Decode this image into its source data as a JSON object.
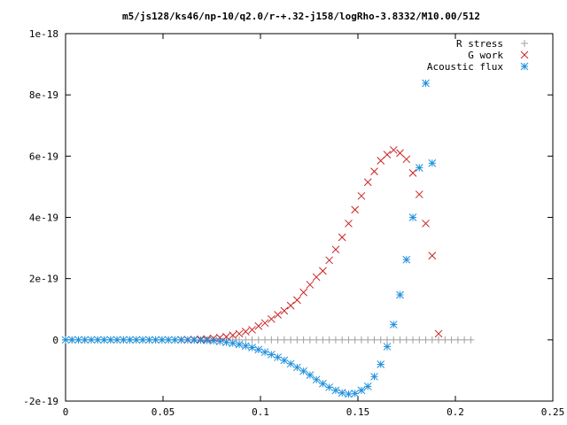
{
  "chart_data": {
    "type": "scatter",
    "title": "m5/js128/ks46/np-10/q2.0/r-+.32-j158/logRho-3.8332/M10.00/512",
    "xlabel": "",
    "ylabel": "",
    "xlim": [
      0,
      0.25
    ],
    "ylim": [
      -2e-19,
      1e-18
    ],
    "grid": false,
    "legend_position": "top-right",
    "x_ticks": [
      {
        "value": 0,
        "label": "0"
      },
      {
        "value": 0.05,
        "label": "0.05"
      },
      {
        "value": 0.1,
        "label": "0.1"
      },
      {
        "value": 0.15,
        "label": "0.15"
      },
      {
        "value": 0.2,
        "label": "0.2"
      },
      {
        "value": 0.25,
        "label": "0.25"
      }
    ],
    "y_ticks": [
      {
        "value": -2e-19,
        "label": "-2e-19"
      },
      {
        "value": 0,
        "label": "0"
      },
      {
        "value": 2e-19,
        "label": "2e-19"
      },
      {
        "value": 4e-19,
        "label": "4e-19"
      },
      {
        "value": 6e-19,
        "label": "6e-19"
      },
      {
        "value": 8e-19,
        "label": "8e-19"
      },
      {
        "value": 1e-18,
        "label": "1e-18"
      }
    ],
    "series": [
      {
        "name": "R stress",
        "marker": "plus",
        "color": "#a0a0a0",
        "points": [
          [
            0.0,
            0
          ],
          [
            0.0033,
            0
          ],
          [
            0.0066,
            0
          ],
          [
            0.0099,
            0
          ],
          [
            0.0132,
            0
          ],
          [
            0.0165,
            0
          ],
          [
            0.0198,
            0
          ],
          [
            0.0231,
            0
          ],
          [
            0.0264,
            0
          ],
          [
            0.0297,
            0
          ],
          [
            0.033,
            0
          ],
          [
            0.0363,
            0
          ],
          [
            0.0396,
            0
          ],
          [
            0.0429,
            0
          ],
          [
            0.0462,
            0
          ],
          [
            0.0495,
            0
          ],
          [
            0.0528,
            0
          ],
          [
            0.0561,
            0
          ],
          [
            0.0594,
            0
          ],
          [
            0.0627,
            0
          ],
          [
            0.066,
            0
          ],
          [
            0.0693,
            0
          ],
          [
            0.0726,
            0
          ],
          [
            0.0759,
            0
          ],
          [
            0.0792,
            0
          ],
          [
            0.0825,
            0
          ],
          [
            0.0858,
            0
          ],
          [
            0.0891,
            0
          ],
          [
            0.0924,
            0
          ],
          [
            0.0957,
            0
          ],
          [
            0.099,
            0
          ],
          [
            0.1023,
            0
          ],
          [
            0.1056,
            0
          ],
          [
            0.1089,
            0
          ],
          [
            0.1122,
            0
          ],
          [
            0.1155,
            0
          ],
          [
            0.1188,
            0
          ],
          [
            0.1221,
            0
          ],
          [
            0.1254,
            0
          ],
          [
            0.1287,
            0
          ],
          [
            0.132,
            0
          ],
          [
            0.1353,
            0
          ],
          [
            0.1386,
            0
          ],
          [
            0.1419,
            0
          ],
          [
            0.1452,
            0
          ],
          [
            0.1485,
            0
          ],
          [
            0.1518,
            0
          ],
          [
            0.1551,
            0
          ],
          [
            0.1584,
            0
          ],
          [
            0.1617,
            0
          ],
          [
            0.165,
            0
          ],
          [
            0.1683,
            0
          ],
          [
            0.1716,
            0
          ],
          [
            0.1749,
            0
          ],
          [
            0.1782,
            0
          ],
          [
            0.1815,
            0
          ],
          [
            0.1848,
            0
          ],
          [
            0.1881,
            0
          ],
          [
            0.1914,
            0
          ],
          [
            0.1947,
            0
          ],
          [
            0.198,
            0
          ],
          [
            0.2013,
            0
          ],
          [
            0.2046,
            0
          ],
          [
            0.2079,
            0
          ]
        ]
      },
      {
        "name": "G work",
        "marker": "cross",
        "color": "#cc2222",
        "points": [
          [
            0.0594,
            4e-22
          ],
          [
            0.0627,
            6e-22
          ],
          [
            0.066,
            1e-21
          ],
          [
            0.0693,
            2e-21
          ],
          [
            0.0726,
            3e-21
          ],
          [
            0.0759,
            5e-21
          ],
          [
            0.0792,
            7e-21
          ],
          [
            0.0825,
            1e-20
          ],
          [
            0.0858,
            1.5e-20
          ],
          [
            0.0891,
            2e-20
          ],
          [
            0.0924,
            2.7e-20
          ],
          [
            0.0957,
            3.3e-20
          ],
          [
            0.099,
            4.5e-20
          ],
          [
            0.1023,
            5.5e-20
          ],
          [
            0.1056,
            6.8e-20
          ],
          [
            0.1089,
            8.2e-20
          ],
          [
            0.1122,
            9.5e-20
          ],
          [
            0.1155,
            1.12e-19
          ],
          [
            0.1188,
            1.3e-19
          ],
          [
            0.1221,
            1.55e-19
          ],
          [
            0.1254,
            1.8e-19
          ],
          [
            0.1287,
            2.05e-19
          ],
          [
            0.132,
            2.25e-19
          ],
          [
            0.1353,
            2.6e-19
          ],
          [
            0.1386,
            2.95e-19
          ],
          [
            0.1419,
            3.35e-19
          ],
          [
            0.1452,
            3.8e-19
          ],
          [
            0.1485,
            4.25e-19
          ],
          [
            0.1518,
            4.7e-19
          ],
          [
            0.1551,
            5.15e-19
          ],
          [
            0.1584,
            5.5e-19
          ],
          [
            0.1617,
            5.85e-19
          ],
          [
            0.165,
            6.05e-19
          ],
          [
            0.1683,
            6.2e-19
          ],
          [
            0.1716,
            6.1e-19
          ],
          [
            0.1749,
            5.9e-19
          ],
          [
            0.1782,
            5.45e-19
          ],
          [
            0.1815,
            4.75e-19
          ],
          [
            0.1848,
            3.8e-19
          ],
          [
            0.1881,
            2.75e-19
          ],
          [
            0.1914,
            2e-20
          ]
        ]
      },
      {
        "name": "Acoustic flux",
        "marker": "star",
        "color": "#1e90dd",
        "points": [
          [
            0.0,
            0
          ],
          [
            0.0033,
            0
          ],
          [
            0.0066,
            0
          ],
          [
            0.0099,
            0
          ],
          [
            0.0132,
            0
          ],
          [
            0.0165,
            0
          ],
          [
            0.0198,
            0
          ],
          [
            0.0231,
            0
          ],
          [
            0.0264,
            0
          ],
          [
            0.0297,
            0
          ],
          [
            0.033,
            0
          ],
          [
            0.0363,
            0
          ],
          [
            0.0396,
            0
          ],
          [
            0.0429,
            0
          ],
          [
            0.0462,
            0
          ],
          [
            0.0495,
            0
          ],
          [
            0.0528,
            0
          ],
          [
            0.0561,
            0
          ],
          [
            0.0594,
            0
          ],
          [
            0.0627,
            -3e-22
          ],
          [
            0.066,
            -5e-22
          ],
          [
            0.0693,
            -1e-21
          ],
          [
            0.0726,
            -2e-21
          ],
          [
            0.0759,
            -3e-21
          ],
          [
            0.0792,
            -5e-21
          ],
          [
            0.0825,
            -8e-21
          ],
          [
            0.0858,
            -1.1e-20
          ],
          [
            0.0891,
            -1.5e-20
          ],
          [
            0.0924,
            -2e-20
          ],
          [
            0.0957,
            -2.5e-20
          ],
          [
            0.099,
            -3.2e-20
          ],
          [
            0.1023,
            -4e-20
          ],
          [
            0.1056,
            -4.8e-20
          ],
          [
            0.1089,
            -5.7e-20
          ],
          [
            0.1122,
            -6.7e-20
          ],
          [
            0.1155,
            -7.8e-20
          ],
          [
            0.1188,
            -9e-20
          ],
          [
            0.1221,
            -1.02e-19
          ],
          [
            0.1254,
            -1.15e-19
          ],
          [
            0.1287,
            -1.3e-19
          ],
          [
            0.132,
            -1.43e-19
          ],
          [
            0.1353,
            -1.55e-19
          ],
          [
            0.1386,
            -1.65e-19
          ],
          [
            0.1419,
            -1.73e-19
          ],
          [
            0.1452,
            -1.77e-19
          ],
          [
            0.1485,
            -1.75e-19
          ],
          [
            0.1518,
            -1.65e-19
          ],
          [
            0.1551,
            -1.52e-19
          ],
          [
            0.1584,
            -1.2e-19
          ],
          [
            0.1617,
            -8e-20
          ],
          [
            0.165,
            -2.2e-20
          ],
          [
            0.1683,
            5e-20
          ],
          [
            0.1716,
            1.47e-19
          ],
          [
            0.1749,
            2.62e-19
          ],
          [
            0.1782,
            4e-19
          ],
          [
            0.1815,
            5.62e-19
          ],
          [
            0.1848,
            8.38e-19
          ],
          [
            0.1881,
            5.77e-19
          ]
        ]
      }
    ]
  }
}
